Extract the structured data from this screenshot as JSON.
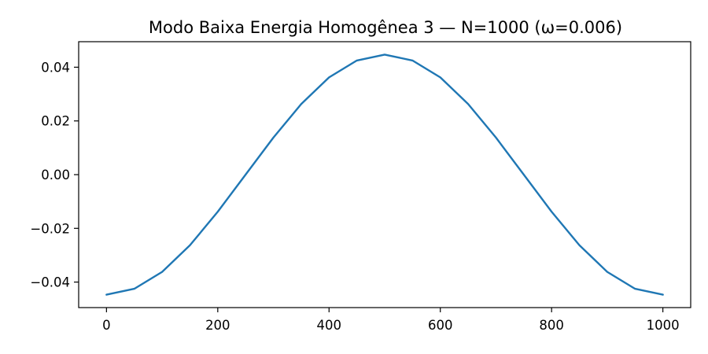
{
  "chart_data": {
    "type": "line",
    "title": "Modo Baixa Energia Homogênea 3 — N=1000 (ω=0.006)",
    "xlabel": "",
    "ylabel": "",
    "xlim": [
      -50,
      1050
    ],
    "ylim": [
      -0.0495,
      0.0495
    ],
    "grid": false,
    "legend": "none",
    "x_ticks": [
      {
        "value": 0,
        "label": "0"
      },
      {
        "value": 200,
        "label": "200"
      },
      {
        "value": 400,
        "label": "400"
      },
      {
        "value": 600,
        "label": "600"
      },
      {
        "value": 800,
        "label": "800"
      },
      {
        "value": 1000,
        "label": "1000"
      }
    ],
    "y_ticks": [
      {
        "value": 0.04,
        "label": "0.04"
      },
      {
        "value": 0.02,
        "label": "0.02"
      },
      {
        "value": 0.0,
        "label": "0.00"
      },
      {
        "value": -0.02,
        "label": "−0.02"
      },
      {
        "value": -0.04,
        "label": "−0.04"
      }
    ],
    "series": [
      {
        "color": "#1f77b4",
        "x": [
          0,
          50,
          100,
          150,
          200,
          250,
          300,
          350,
          400,
          450,
          500,
          550,
          600,
          650,
          700,
          750,
          800,
          850,
          900,
          950,
          1000
        ],
        "y": [
          -0.0447,
          -0.0425,
          -0.0362,
          -0.0263,
          -0.0138,
          0.0,
          0.0138,
          0.0263,
          0.0362,
          0.0425,
          0.0447,
          0.0425,
          0.0362,
          0.0263,
          0.0138,
          0.0,
          -0.0138,
          -0.0263,
          -0.0362,
          -0.0425,
          -0.0447
        ]
      }
    ]
  }
}
